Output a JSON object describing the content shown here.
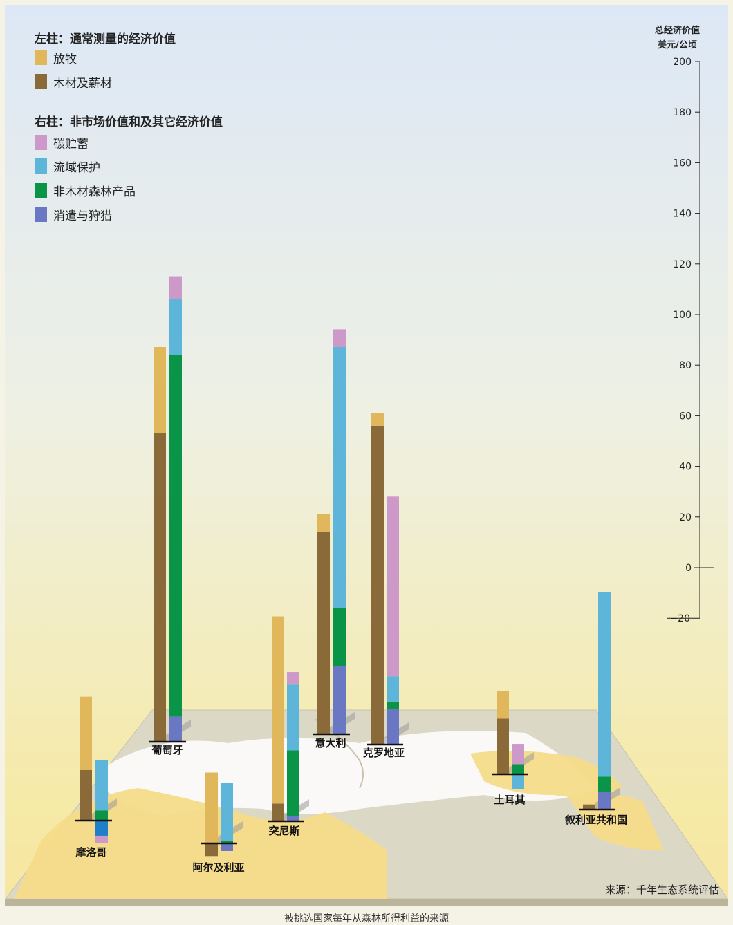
{
  "chart_data": {
    "type": "bar",
    "ylabel_line1": "总经济价值",
    "ylabel_line2": "美元/公顷",
    "ylim": [
      -20,
      200
    ],
    "yticks": [
      200,
      180,
      160,
      140,
      120,
      100,
      80,
      60,
      40,
      20,
      0,
      -20
    ],
    "legend": {
      "left_heading": "左柱：通常测量的经济价值",
      "right_heading": "右柱：非市场价值和及其它经济价值",
      "items": [
        {
          "key": "grazing",
          "label": "放牧",
          "color": "#e0b75a"
        },
        {
          "key": "timber",
          "label": "木材及薪材",
          "color": "#8b6a3a"
        },
        {
          "key": "carbon",
          "label": "碳贮蓄",
          "color": "#cc99c9"
        },
        {
          "key": "watershed",
          "label": "流域保护",
          "color": "#5db6da"
        },
        {
          "key": "ntfp",
          "label": "非木材森林产品",
          "color": "#0a9447"
        },
        {
          "key": "recreation",
          "label": "消遣与狩猎",
          "color": "#6a78c4"
        }
      ]
    },
    "series_colors": {
      "grazing": "#e0b75a",
      "timber": "#8b6a3a",
      "carbon": "#cc99c9",
      "watershed": "#5db6da",
      "ntfp": "#0a9447",
      "recreation": "#6a78c4",
      "recreation_neg": "#1f7fc9"
    },
    "countries": [
      {
        "name": "摩洛哥",
        "left": {
          "timber": 20,
          "grazing": 29
        },
        "right": {
          "ntfp": 4,
          "watershed": 20
        },
        "right_negative": {
          "recreation_neg": -6,
          "carbon": -3
        }
      },
      {
        "name": "葡萄牙",
        "left": {
          "timber": 122,
          "grazing": 34
        },
        "right": {
          "recreation": 10,
          "ntfp": 143,
          "watershed": 22,
          "carbon": 9
        },
        "right_negative": {}
      },
      {
        "name": "阿尔及利亚",
        "left": {
          "grazing": 28
        },
        "left_negative": {
          "timber": -5
        },
        "right": {
          "ntfp": 1,
          "watershed": 23
        },
        "right_negative": {
          "recreation": -3
        }
      },
      {
        "name": "突尼斯",
        "left": {
          "timber": 7,
          "grazing": 74
        },
        "right": {
          "recreation": 2,
          "ntfp": 26,
          "watershed": 26,
          "carbon": 5
        },
        "right_negative": {}
      },
      {
        "name": "意大利",
        "left": {
          "timber": 80,
          "grazing": 7
        },
        "right": {
          "recreation": 27,
          "ntfp": 23,
          "watershed": 103,
          "carbon": 7
        },
        "right_negative": {}
      },
      {
        "name": "克罗地亚",
        "left": {
          "timber": 126,
          "grazing": 5
        },
        "right": {
          "recreation": 14,
          "ntfp": 3,
          "watershed": 10,
          "carbon": 71
        },
        "right_negative": {}
      },
      {
        "name": "土耳其",
        "left": {
          "timber": 22,
          "grazing": 11
        },
        "right": {
          "ntfp": 4,
          "carbon": 8
        },
        "right_negative": {
          "watershed": -6
        }
      },
      {
        "name": "叙利亚共和国",
        "left": {
          "timber": 2
        },
        "right": {
          "recreation": 7,
          "watershed": 73,
          "ntfp": 6
        },
        "right_negative": {}
      }
    ],
    "source": "来源：千年生态系统评估",
    "caption": "被挑选国家每年从森林所得利益的来源"
  }
}
